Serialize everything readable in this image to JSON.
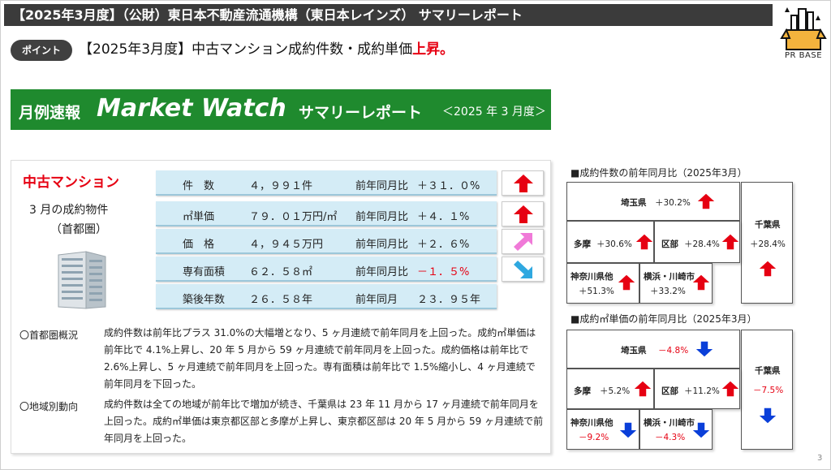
{
  "header": {
    "title": "【2025年3月度】（公財）東日本不動産流通機構（東日本レインズ） サマリーレポート",
    "logo_text": "PR BASE"
  },
  "point": {
    "badge": "ポイント",
    "text_prefix": "【2025年3月度】中古マンション成約件数・成約単価",
    "text_highlight": "上昇",
    "text_suffix": "。"
  },
  "banner": {
    "part1": "月例速報",
    "part2": "Market Watch",
    "part3": "サマリーレポート",
    "part4": "＜2025 年 3 月度＞"
  },
  "category": {
    "title": "中古マンション",
    "sub1": "3 月の成約物件",
    "sub2": "（首都圏）"
  },
  "stats": [
    {
      "label": "件　数",
      "value": "４，９９１件",
      "yoy_label": "前年同月比",
      "yoy": "＋３１．０%",
      "trend": "up",
      "negative": false
    },
    {
      "label": "㎡単価",
      "value": "７９．０１万円/㎡",
      "yoy_label": "前年同月比",
      "yoy": "＋４．１%",
      "trend": "up",
      "negative": false
    },
    {
      "label": "価　格",
      "value": "４，９４５万円",
      "yoy_label": "前年同月比",
      "yoy": "＋２．６%",
      "trend": "slight-up",
      "negative": false
    },
    {
      "label": "専有面積",
      "value": "６２．５８㎡",
      "yoy_label": "前年同月比",
      "yoy": "－１．５%",
      "trend": "slight-down",
      "negative": true
    },
    {
      "label": "築後年数",
      "value": "２６．５８年",
      "yoy_label": "前年同月",
      "yoy": "２３．９５年",
      "trend": "none",
      "negative": false
    }
  ],
  "notes": [
    {
      "label": "〇首都圏概況",
      "text": "成約件数は前年比プラス 31.0%の大幅増となり、5 ヶ月連続で前年同月を上回った。成約㎡単価は前年比で 4.1%上昇し、20 年 5 月から 59 ヶ月連続で前年同月を上回った。成約価格は前年比で 2.6%上昇し、5 ヶ月連続で前年同月を上回った。専有面積は前年比で 1.5%縮小し、4 ヶ月連続で前年同月を下回った。"
    },
    {
      "label": "〇地域別動向",
      "text": "成約件数は全ての地域が前年比で増加が続き、千葉県は 23 年 11 月から 17 ヶ月連続で前年同月を上回った。成約㎡単価は東京都区部と多摩が上昇し、東京都区部は 20 年 5 月から 59 ヶ月連続で前年同月を上回った。"
    }
  ],
  "map1": {
    "title": "■成約件数の前年同月比（2025年3月）",
    "regions": {
      "saitama": {
        "name": "埼玉県",
        "value": "＋30.2%",
        "trend": "up"
      },
      "chiba": {
        "name": "千葉県",
        "value": "＋28.4%",
        "trend": "up"
      },
      "tama": {
        "name": "多摩",
        "value": "＋30.6%",
        "trend": "up"
      },
      "kubu": {
        "name": "区部",
        "value": "＋28.4%",
        "trend": "up"
      },
      "kanagawa": {
        "name": "神奈川県他",
        "value": "＋51.3%",
        "trend": "up"
      },
      "yokohama": {
        "name": "横浜・川崎市",
        "value": "＋33.2%",
        "trend": "up"
      }
    }
  },
  "map2": {
    "title": "■成約㎡単価の前年同月比（2025年3月）",
    "regions": {
      "saitama": {
        "name": "埼玉県",
        "value": "－4.8%",
        "trend": "down"
      },
      "chiba": {
        "name": "千葉県",
        "value": "－7.5%",
        "trend": "down"
      },
      "tama": {
        "name": "多摩",
        "value": "＋5.2%",
        "trend": "up"
      },
      "kubu": {
        "name": "区部",
        "value": "＋11.2%",
        "trend": "up"
      },
      "kanagawa": {
        "name": "神奈川県他",
        "value": "－9.2%",
        "trend": "down"
      },
      "yokohama": {
        "name": "横浜・川崎市",
        "value": "－4.3%",
        "trend": "down"
      }
    }
  },
  "page_number": "3",
  "colors": {
    "up": "#e60012",
    "down": "#0a3fd9",
    "slight_up": "#f07ad8",
    "slight_down": "#2fa8e0",
    "banner": "#1f8a2e"
  }
}
